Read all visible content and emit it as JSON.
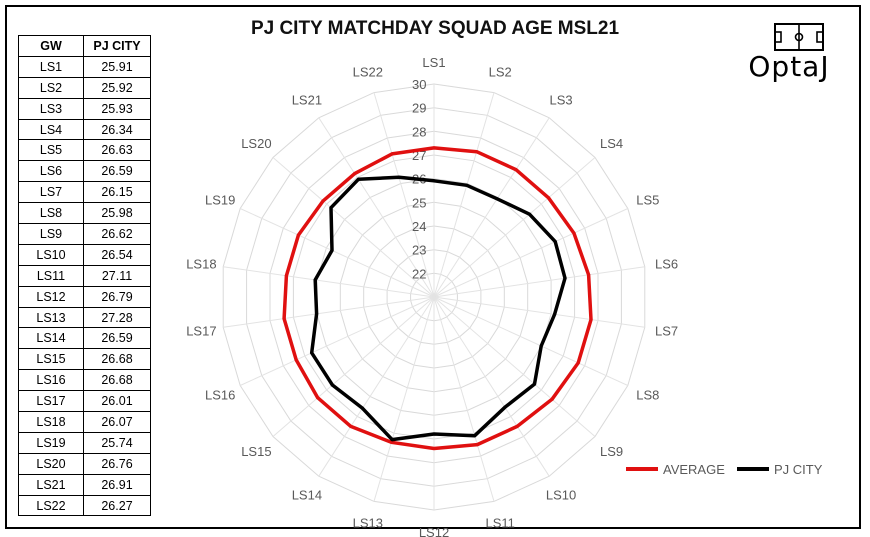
{
  "title": "PJ CITY MATCHDAY SQUAD AGE MSL21",
  "logo_text": "OptaJ",
  "table": {
    "headers": [
      "GW",
      "PJ CITY"
    ],
    "rows": [
      [
        "LS1",
        "25.91"
      ],
      [
        "LS2",
        "25.92"
      ],
      [
        "LS3",
        "25.93"
      ],
      [
        "LS4",
        "26.34"
      ],
      [
        "LS5",
        "26.63"
      ],
      [
        "LS6",
        "26.59"
      ],
      [
        "LS7",
        "26.15"
      ],
      [
        "LS8",
        "25.98"
      ],
      [
        "LS9",
        "26.62"
      ],
      [
        "LS10",
        "26.54"
      ],
      [
        "LS11",
        "27.11"
      ],
      [
        "LS12",
        "26.79"
      ],
      [
        "LS13",
        "27.28"
      ],
      [
        "LS14",
        "26.59"
      ],
      [
        "LS15",
        "26.68"
      ],
      [
        "LS16",
        "26.68"
      ],
      [
        "LS17",
        "26.01"
      ],
      [
        "LS18",
        "26.07"
      ],
      [
        "LS19",
        "25.74"
      ],
      [
        "LS20",
        "26.76"
      ],
      [
        "LS21",
        "26.91"
      ],
      [
        "LS22",
        "26.27"
      ]
    ]
  },
  "chart_data": {
    "type": "radar",
    "title": "PJ CITY MATCHDAY SQUAD AGE MSL21",
    "categories": [
      "LS1",
      "LS2",
      "LS3",
      "LS4",
      "LS5",
      "LS6",
      "LS7",
      "LS8",
      "LS9",
      "LS10",
      "LS11",
      "LS12",
      "LS13",
      "LS14",
      "LS15",
      "LS16",
      "LS17",
      "LS18",
      "LS19",
      "LS20",
      "LS21",
      "LS22"
    ],
    "ticks": [
      22,
      23,
      24,
      25,
      26,
      27,
      28,
      29,
      30
    ],
    "rlim": [
      21,
      30
    ],
    "series": [
      {
        "name": "AVERAGE",
        "color": "#e01010",
        "values": [
          27.3,
          27.4,
          27.4,
          27.4,
          27.5,
          27.6,
          27.7,
          27.7,
          27.6,
          27.5,
          27.5,
          27.4,
          27.4,
          27.5,
          27.5,
          27.4,
          27.4,
          27.3,
          27.3,
          27.2,
          27.2,
          27.3
        ]
      },
      {
        "name": "PJ CITY",
        "color": "#000000",
        "values": [
          25.91,
          25.92,
          25.93,
          26.34,
          26.63,
          26.59,
          26.15,
          25.98,
          26.62,
          26.54,
          27.11,
          26.79,
          27.28,
          26.59,
          26.68,
          26.68,
          26.01,
          26.07,
          25.74,
          26.76,
          26.91,
          26.27
        ]
      }
    ],
    "legend_position": "bottom-right"
  }
}
